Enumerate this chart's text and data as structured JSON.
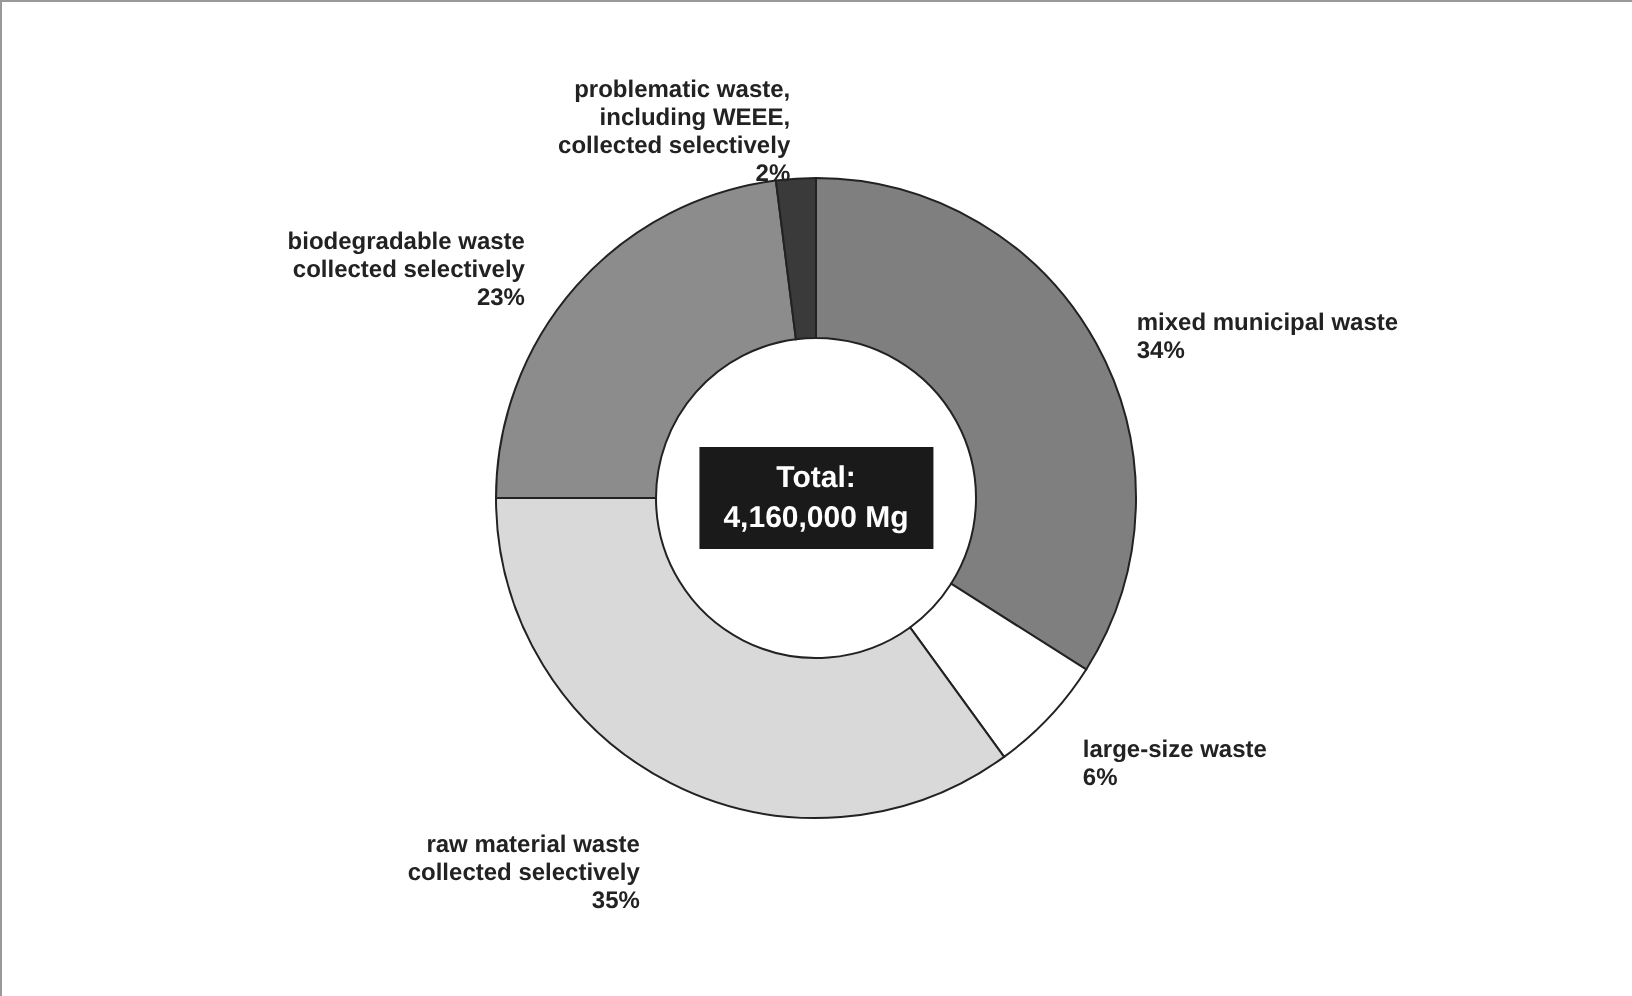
{
  "chart_data": {
    "type": "donut",
    "categories": [
      "mixed municipal waste",
      "large-size waste",
      "raw material waste collected selectively",
      "biodegradable waste collected selectively",
      "problematic waste, including WEEE, collected selectively"
    ],
    "values": [
      34,
      6,
      35,
      23,
      2
    ],
    "colors": [
      "#7f7f7f",
      "#ffffff",
      "#d9d9d9",
      "#8c8c8c",
      "#3a3a3a"
    ],
    "annotations": [
      "Total:\n4,160,000 Mg"
    ],
    "value_labels": [
      "34%",
      "6%",
      "35%",
      "23%",
      "2%"
    ]
  }
}
